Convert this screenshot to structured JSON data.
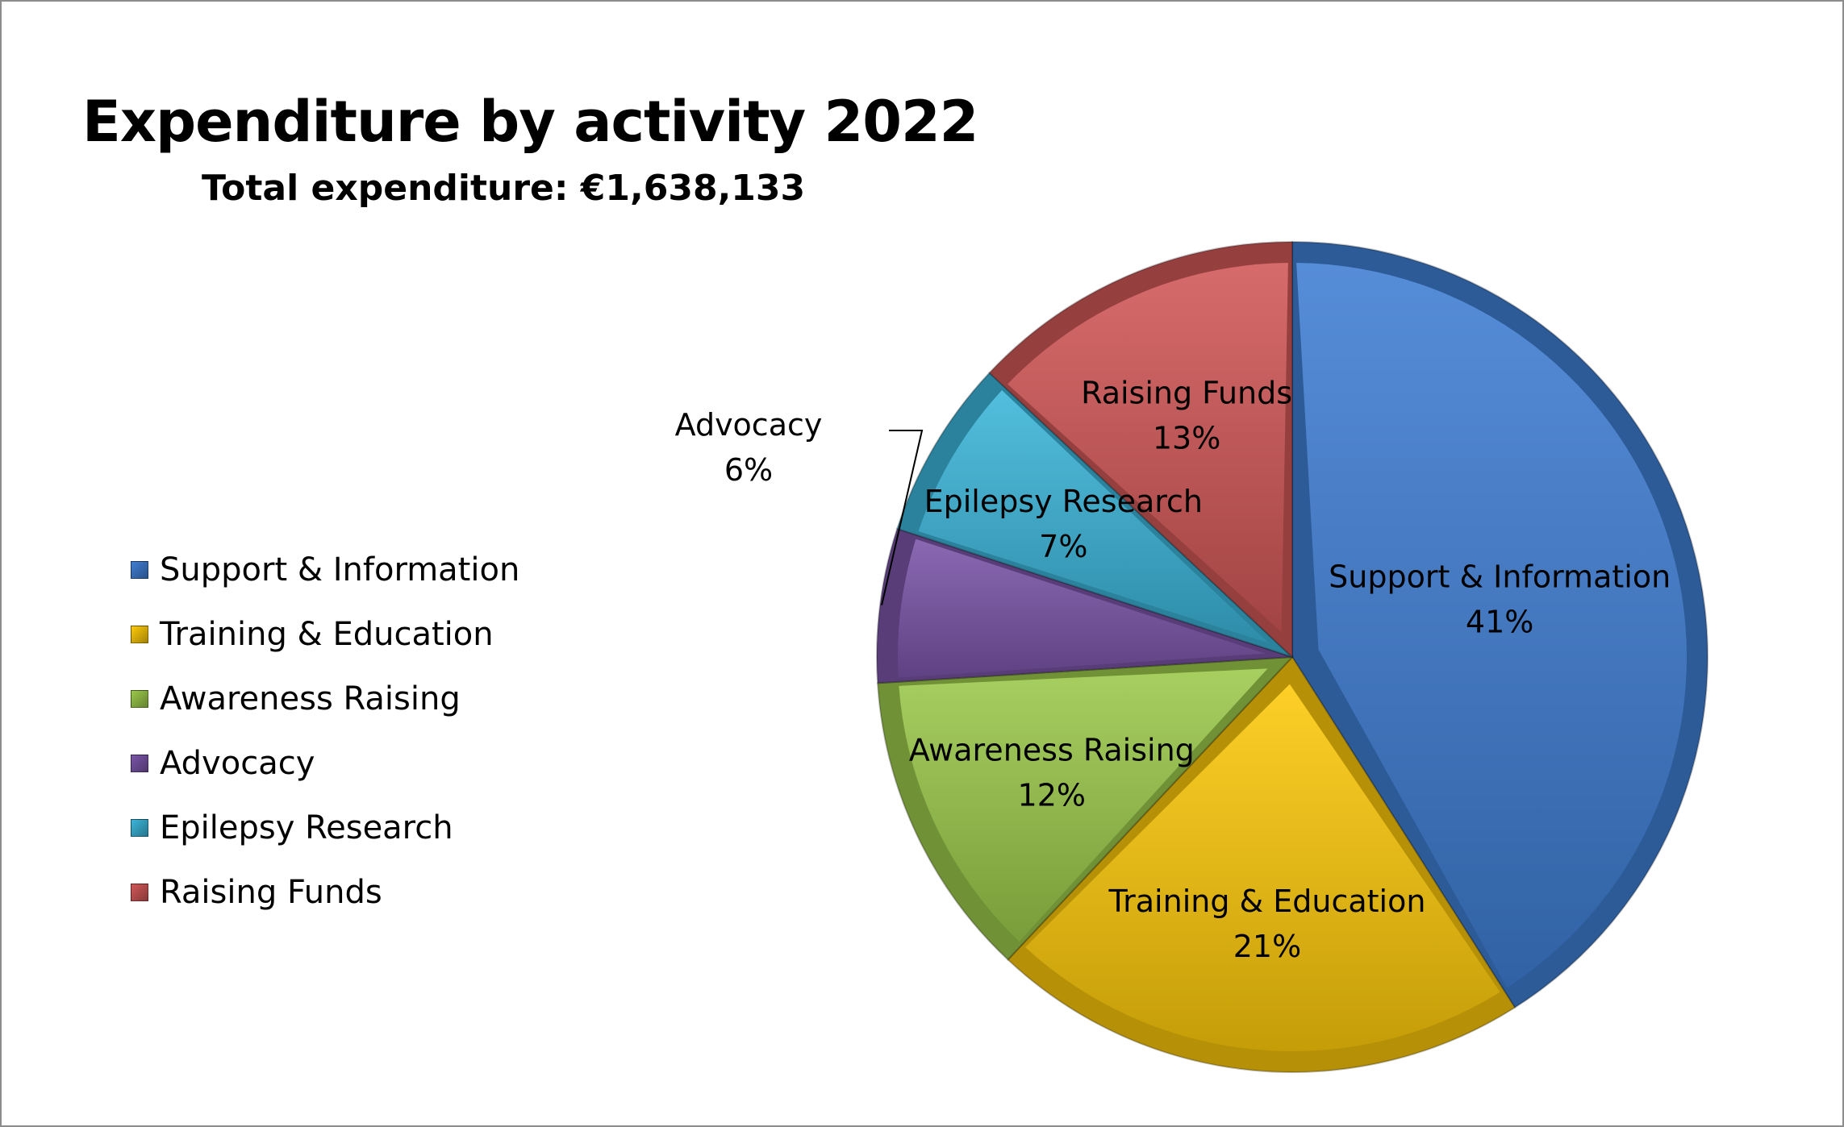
{
  "chart_data": {
    "type": "pie",
    "title": "Expenditure by activity 2022",
    "subtitle": "Total expenditure: €1,638,133",
    "legend_position": "left",
    "slices": [
      {
        "name": "Support & Information",
        "value": 41,
        "label": "41%",
        "color": "#3f7ed3"
      },
      {
        "name": "Training & Education",
        "value": 21,
        "label": "21%",
        "color": "#fdc90a"
      },
      {
        "name": "Awareness Raising",
        "value": 12,
        "label": "12%",
        "color": "#9bc94a"
      },
      {
        "name": "Advocacy",
        "value": 6,
        "label": "6%",
        "color": "#7a55a8"
      },
      {
        "name": "Epilepsy Research",
        "value": 7,
        "label": "7%",
        "color": "#3bb5d9"
      },
      {
        "name": "Raising Funds",
        "value": 13,
        "label": "13%",
        "color": "#d15757"
      }
    ]
  }
}
